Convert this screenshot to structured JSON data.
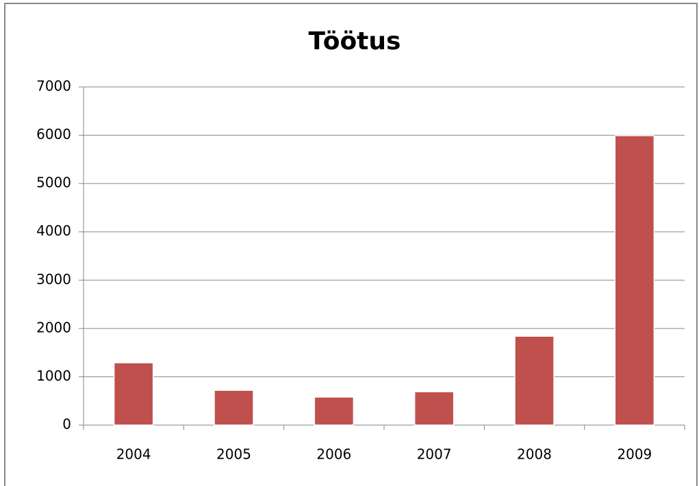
{
  "chart_data": {
    "type": "bar",
    "title": "Töötus",
    "categories": [
      "2004",
      "2005",
      "2006",
      "2007",
      "2008",
      "2009"
    ],
    "values": [
      1290,
      720,
      580,
      690,
      1840,
      5990
    ],
    "color": "#c0504d",
    "ylim": [
      0,
      7000
    ],
    "yticks": [
      0,
      1000,
      2000,
      3000,
      4000,
      5000,
      6000,
      7000
    ],
    "grid": true
  }
}
